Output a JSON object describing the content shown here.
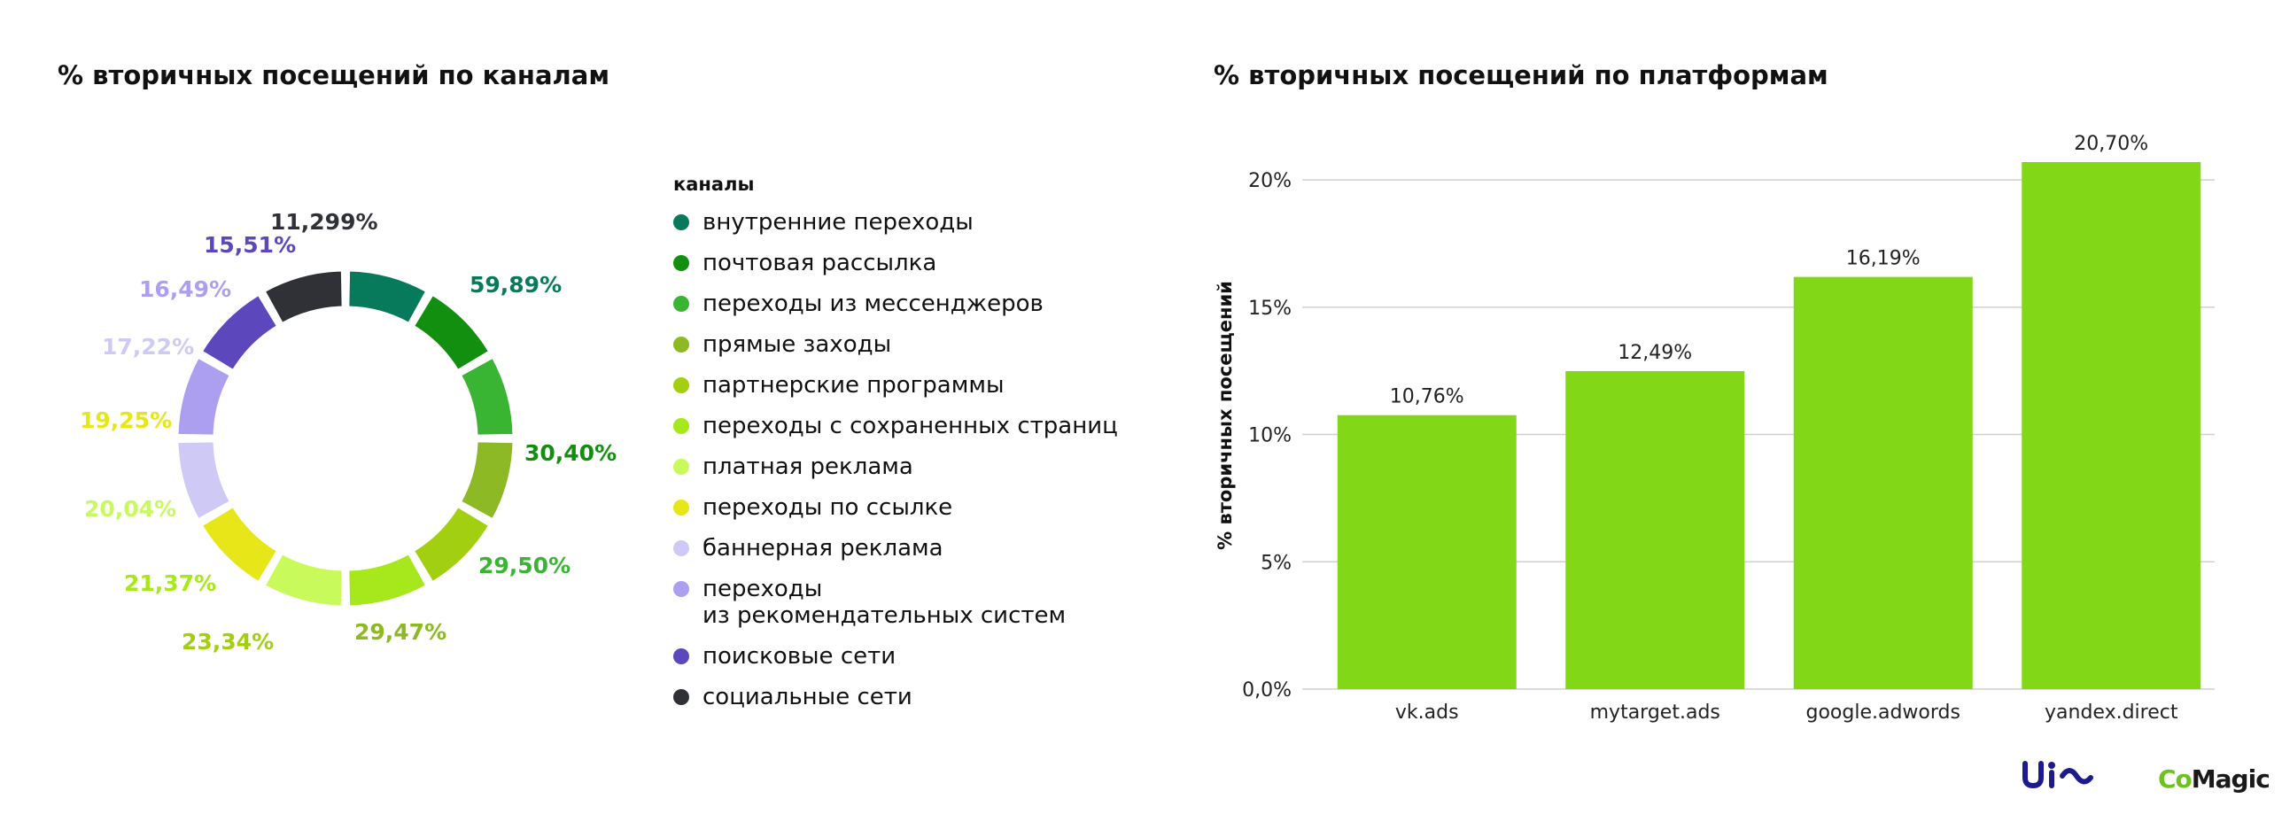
{
  "colors": {
    "bar": "#82d816",
    "grid": "#d0d0d0"
  },
  "chart_data": [
    {
      "type": "pie",
      "title": "% вторичных посещений по каналам",
      "legend_title": "каналы",
      "legend_position": "right",
      "slices": [
        {
          "label": "внутренние переходы",
          "value_label": "59,89%",
          "color": "#087a5c"
        },
        {
          "label": "почтовая рассылка",
          "value_label": "30,40%",
          "color": "#138f10"
        },
        {
          "label": "переходы из мессенджеров",
          "value_label": "29,50%",
          "color": "#3ab433"
        },
        {
          "label": "прямые заходы",
          "value_label": "29,47%",
          "color": "#8db924"
        },
        {
          "label": "партнерские программы",
          "value_label": "23,34%",
          "color": "#a2cf10"
        },
        {
          "label": "переходы с сохраненных страниц",
          "value_label": "21,37%",
          "color": "#a6e81c"
        },
        {
          "label": "платная реклама",
          "value_label": "20,04%",
          "color": "#c9fa5c"
        },
        {
          "label": "переходы по ссылке",
          "value_label": "19,25%",
          "color": "#e6e619"
        },
        {
          "label": "баннерная реклама",
          "value_label": "17,22%",
          "color": "#cfcaf5"
        },
        {
          "label": "переходы\nиз рекомендательных систем",
          "value_label": "16,49%",
          "color": "#ad9ff0"
        },
        {
          "label": "поисковые сети",
          "value_label": "15,51%",
          "color": "#5d47bd"
        },
        {
          "label": "социальные сети",
          "value_label": "11,299%",
          "color": "#2f3137"
        }
      ]
    },
    {
      "type": "bar",
      "title": "% вторичных посещений по платформам",
      "ylabel": "% вторичных посещений",
      "categories": [
        "vk.ads",
        "mytarget.ads",
        "google.adwords",
        "yandex.direct"
      ],
      "values": [
        10.76,
        12.49,
        16.19,
        20.7
      ],
      "value_labels": [
        "10,76%",
        "12,49%",
        "16,19%",
        "20,70%"
      ],
      "yticks": [
        0,
        5,
        10,
        15,
        20
      ],
      "ytick_labels": [
        "0,0%",
        "5%",
        "10%",
        "15%",
        "20%"
      ],
      "ylim": [
        0,
        21.5
      ],
      "grid": true
    }
  ]
}
